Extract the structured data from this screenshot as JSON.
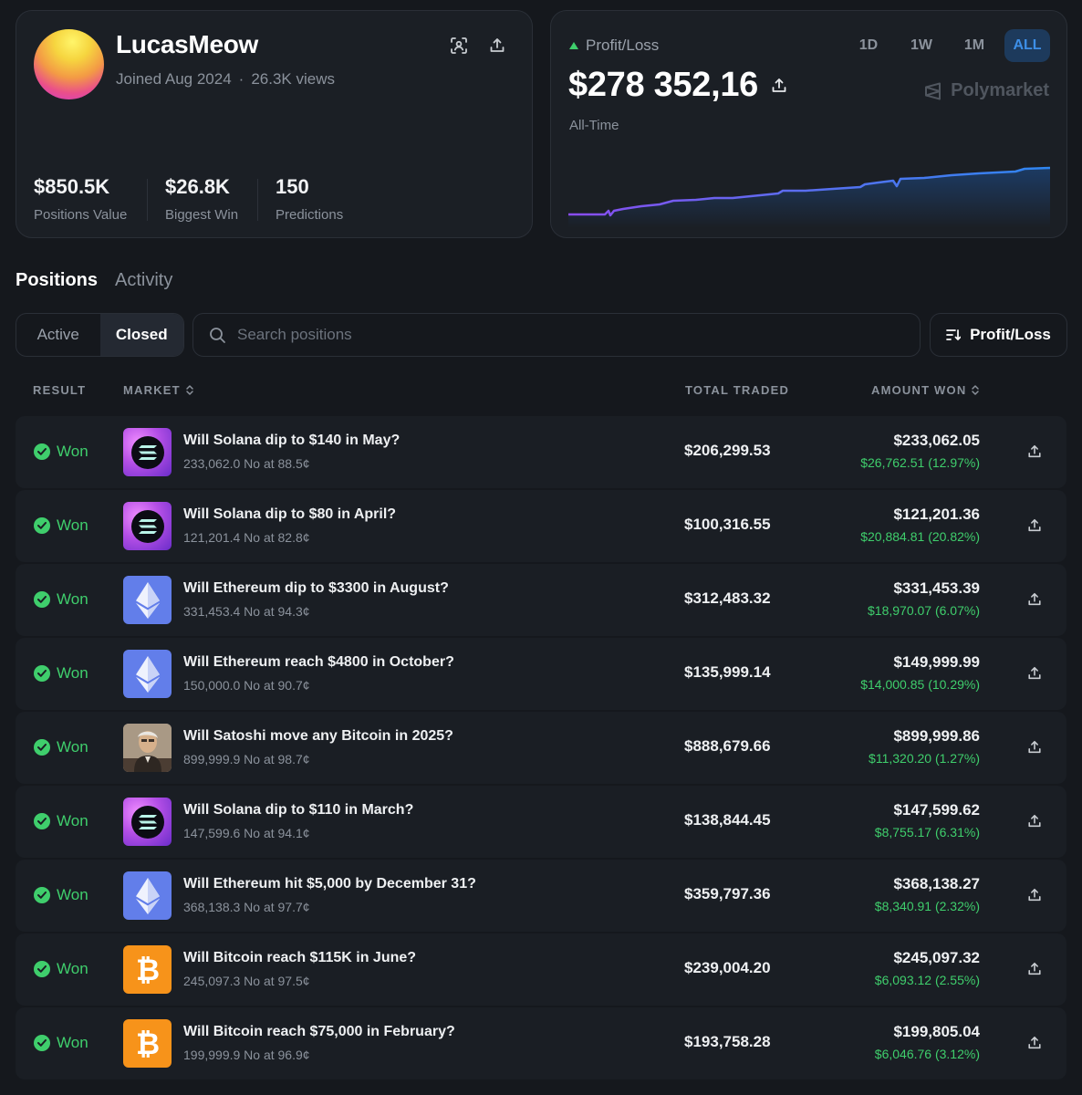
{
  "profile": {
    "username": "LucasMeow",
    "joined": "Joined Aug 2024",
    "views": "26.3K views",
    "stats": [
      {
        "value": "$850.5K",
        "label": "Positions Value"
      },
      {
        "value": "$26.8K",
        "label": "Biggest Win"
      },
      {
        "value": "150",
        "label": "Predictions"
      }
    ]
  },
  "pnl": {
    "label": "Profit/Loss",
    "value": "$278 352,16",
    "period_label": "All-Time",
    "brand": "Polymarket",
    "ranges": [
      "1D",
      "1W",
      "1M",
      "ALL"
    ],
    "active_range": "ALL",
    "colors": {
      "line_start": "#8a4cf0",
      "line_end": "#2f86f0"
    }
  },
  "tabs": {
    "positions": "Positions",
    "activity": "Activity",
    "active": "Positions"
  },
  "filters": {
    "active": "Active",
    "closed": "Closed",
    "selected": "Closed"
  },
  "search": {
    "placeholder": "Search positions",
    "value": ""
  },
  "sort": {
    "label": "Profit/Loss"
  },
  "columns": {
    "result": "RESULT",
    "market": "MARKET",
    "total_traded": "TOTAL TRADED",
    "amount_won": "AMOUNT WON"
  },
  "positions": [
    {
      "result": "Won",
      "icon": "solana-icon",
      "question": "Will Solana dip to $140 in May?",
      "detail": "233,062.0 No at 88.5¢",
      "total_traded": "$206,299.53",
      "amount_won": "$233,062.05",
      "profit": "$26,762.51 (12.97%)"
    },
    {
      "result": "Won",
      "icon": "solana-icon",
      "question": "Will Solana dip to $80 in April?",
      "detail": "121,201.4 No at 82.8¢",
      "total_traded": "$100,316.55",
      "amount_won": "$121,201.36",
      "profit": "$20,884.81 (20.82%)"
    },
    {
      "result": "Won",
      "icon": "ethereum-icon",
      "question": "Will Ethereum dip to $3300 in August?",
      "detail": "331,453.4 No at 94.3¢",
      "total_traded": "$312,483.32",
      "amount_won": "$331,453.39",
      "profit": "$18,970.07 (6.07%)"
    },
    {
      "result": "Won",
      "icon": "ethereum-icon",
      "question": "Will Ethereum reach $4800 in October?",
      "detail": "150,000.0 No at 90.7¢",
      "total_traded": "$135,999.14",
      "amount_won": "$149,999.99",
      "profit": "$14,000.85 (10.29%)"
    },
    {
      "result": "Won",
      "icon": "portrait-photo",
      "question": "Will Satoshi move any Bitcoin in 2025?",
      "detail": "899,999.9 No at 98.7¢",
      "total_traded": "$888,679.66",
      "amount_won": "$899,999.86",
      "profit": "$11,320.20 (1.27%)"
    },
    {
      "result": "Won",
      "icon": "solana-icon",
      "question": "Will Solana dip to $110 in March?",
      "detail": "147,599.6 No at 94.1¢",
      "total_traded": "$138,844.45",
      "amount_won": "$147,599.62",
      "profit": "$8,755.17 (6.31%)"
    },
    {
      "result": "Won",
      "icon": "ethereum-icon",
      "question": "Will Ethereum hit $5,000 by December 31?",
      "detail": "368,138.3 No at 97.7¢",
      "total_traded": "$359,797.36",
      "amount_won": "$368,138.27",
      "profit": "$8,340.91 (2.32%)"
    },
    {
      "result": "Won",
      "icon": "bitcoin-icon",
      "question": "Will Bitcoin reach $115K in June?",
      "detail": "245,097.3 No at 97.5¢",
      "total_traded": "$239,004.20",
      "amount_won": "$245,097.32",
      "profit": "$6,093.12 (2.55%)"
    },
    {
      "result": "Won",
      "icon": "bitcoin-icon",
      "question": "Will Bitcoin reach $75,000 in February?",
      "detail": "199,999.9 No at 96.9¢",
      "total_traded": "$193,758.28",
      "amount_won": "$199,805.04",
      "profit": "$6,046.76 (3.12%)"
    }
  ]
}
